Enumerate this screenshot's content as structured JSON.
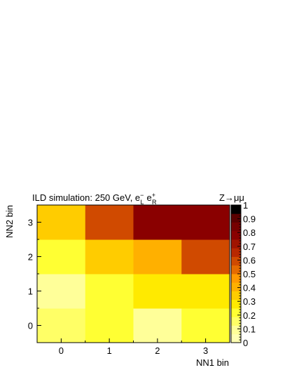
{
  "chart_data": {
    "type": "heatmap",
    "title": "ILD simulation: 250 GeV, e",
    "title_parts": {
      "main": "ILD simulation: 250 GeV, e",
      "e1_sup": "−",
      "e1_sub": "L",
      "e2": "e",
      "e2_sup": "+",
      "e2_sub": "R"
    },
    "channel_label": "Z→μμ",
    "xlabel": "NN1 bin",
    "ylabel": "NN2 bin",
    "x_categories": [
      "0",
      "1",
      "2",
      "3"
    ],
    "y_categories": [
      "0",
      "1",
      "2",
      "3"
    ],
    "zlim": [
      0,
      1
    ],
    "colorbar_ticks": [
      "0",
      "0.1",
      "0.2",
      "0.3",
      "0.4",
      "0.5",
      "0.6",
      "0.7",
      "0.8",
      "0.9",
      "1"
    ],
    "values": [
      [
        0.15,
        0.2,
        0.1,
        0.23
      ],
      [
        0.12,
        0.2,
        0.3,
        0.3
      ],
      [
        0.2,
        0.37,
        0.43,
        0.6
      ],
      [
        0.37,
        0.62,
        0.8,
        0.8
      ]
    ],
    "values_row_order": "y ascending (row 0 = NN2 bin 0)",
    "colormap": [
      "#ffffb3",
      "#ffff99",
      "#ffff66",
      "#ffff33",
      "#ffea00",
      "#ffcc00",
      "#ffb000",
      "#ff9900",
      "#e56b00",
      "#d04a00",
      "#b82800",
      "#a01400",
      "#8a0000",
      "#760000",
      "#5a0000",
      "#000000"
    ]
  }
}
